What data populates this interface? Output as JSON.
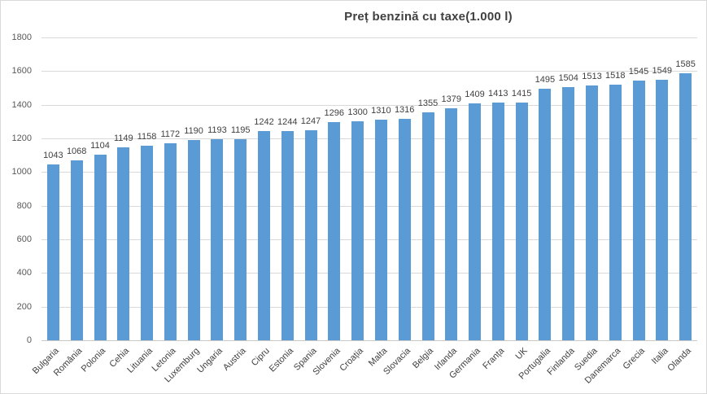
{
  "chart_data": {
    "type": "bar",
    "title": "Preț benzină cu taxe(1.000 l)",
    "xlabel": "",
    "ylabel": "",
    "categories": [
      "Bulgaria",
      "România",
      "Polonia",
      "Cehia",
      "Lituania",
      "Letonia",
      "Luxemburg",
      "Ungaria",
      "Austria",
      "Cipru",
      "Estonia",
      "Spania",
      "Slovenia",
      "Croația",
      "Malta",
      "Slovacia",
      "Belgia",
      "Irlanda",
      "Germania",
      "Franța",
      "UK",
      "Portugalia",
      "Finlanda",
      "Suedia",
      "Danemarca",
      "Grecia",
      "Italia",
      "Olanda"
    ],
    "values": [
      1043,
      1068,
      1104,
      1149,
      1158,
      1172,
      1190,
      1193,
      1195,
      1242,
      1244,
      1247,
      1296,
      1300,
      1310,
      1316,
      1355,
      1379,
      1409,
      1413,
      1415,
      1495,
      1504,
      1513,
      1518,
      1545,
      1549,
      1585
    ],
    "ylim": [
      0,
      1800
    ],
    "ytick_step": 200,
    "ytick_labels": [
      "0",
      "200",
      "400",
      "600",
      "800",
      "1000",
      "1200",
      "1400",
      "1600",
      "1800"
    ],
    "grid": true,
    "legend": "none",
    "data_labels": "above-bars",
    "bar_color": "#5b9bd5",
    "gridline_color": "#d9d9d9",
    "title_color": "#404040",
    "value_label_color": "#404040",
    "axis_label_color": "#595959"
  }
}
